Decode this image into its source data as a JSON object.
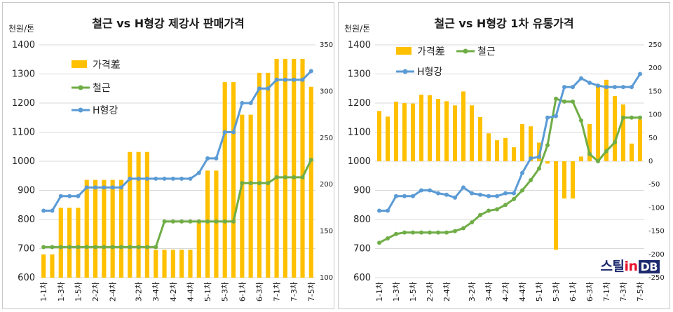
{
  "unit_label": "천원/톤",
  "watermark": {
    "text_a": "스틸",
    "text_b": "in",
    "text_c": "DB"
  },
  "colors": {
    "steel": "#70ad47",
    "h": "#5b9bd5",
    "bar": "#ffc000",
    "grid": "#d9d9d9"
  },
  "chart_data": [
    {
      "type": "bar",
      "title": "철근 vs H형강 제강사 판매가격",
      "ylim": [
        600,
        1400
      ],
      "y2lim": [
        100,
        350
      ],
      "yticks": [
        600,
        700,
        800,
        900,
        1000,
        1100,
        1200,
        1300,
        1400
      ],
      "y2ticks": [
        100,
        150,
        200,
        250,
        300,
        350
      ],
      "legend_placement": "top-left",
      "grid": true,
      "x": [
        "1-1차",
        "1-2차",
        "1-3차",
        "1-4차",
        "1-5차",
        "2-1차",
        "2-2차",
        "2-3차",
        "2-4차",
        "2-5차",
        "3-1차",
        "3-2차",
        "3-3차",
        "3-4차",
        "4-1차",
        "4-2차",
        "4-3차",
        "4-4차",
        "4-5차",
        "5-1차",
        "5-2차",
        "5-3차",
        "5-4차",
        "6-1차",
        "6-2차",
        "6-3차",
        "6-4차",
        "7-1차",
        "7-2차",
        "7-3차",
        "7-4차",
        "7-5차"
      ],
      "xtick_labels": [
        "1-1차",
        "1-3차",
        "1-5차",
        "2-2차",
        "2-4차",
        "3-2차",
        "3-4차",
        "4-2차",
        "4-4차",
        "5-1차",
        "5-3차",
        "6-1차",
        "6-3차",
        "7-1차",
        "7-3차",
        "7-5차"
      ],
      "series": [
        {
          "name": "가격差",
          "type": "bar",
          "axis": "right",
          "values": [
            125,
            125,
            175,
            175,
            175,
            205,
            205,
            205,
            205,
            205,
            235,
            235,
            235,
            130,
            130,
            130,
            130,
            130,
            160,
            215,
            215,
            310,
            310,
            275,
            275,
            320,
            320,
            335,
            335,
            335,
            335,
            305
          ]
        },
        {
          "name": "철근",
          "type": "line",
          "axis": "left",
          "values": [
            705,
            705,
            705,
            705,
            705,
            705,
            705,
            705,
            705,
            705,
            705,
            705,
            705,
            705,
            793,
            793,
            793,
            793,
            793,
            793,
            793,
            793,
            793,
            925,
            925,
            925,
            925,
            945,
            945,
            945,
            945,
            1005
          ]
        },
        {
          "name": "H형강",
          "type": "line",
          "axis": "left",
          "values": [
            830,
            830,
            880,
            880,
            880,
            910,
            910,
            910,
            910,
            910,
            940,
            940,
            940,
            940,
            940,
            940,
            940,
            940,
            960,
            1010,
            1010,
            1100,
            1100,
            1200,
            1200,
            1250,
            1250,
            1280,
            1280,
            1280,
            1280,
            1310
          ]
        }
      ]
    },
    {
      "type": "bar",
      "title": "철근 vs H형강 1차 유통가격",
      "ylim": [
        600,
        1400
      ],
      "y2lim": [
        -250,
        250
      ],
      "yticks": [
        600,
        700,
        800,
        900,
        1000,
        1100,
        1200,
        1300,
        1400
      ],
      "y2ticks": [
        -250,
        -200,
        -150,
        -100,
        -50,
        0,
        50,
        100,
        150,
        200,
        250
      ],
      "legend_placement": "top-left",
      "grid": true,
      "x": [
        "1-1차",
        "1-2차",
        "1-3차",
        "1-4차",
        "1-5차",
        "2-1차",
        "2-2차",
        "2-3차",
        "2-4차",
        "2-5차",
        "3-1차",
        "3-2차",
        "3-3차",
        "3-4차",
        "4-1차",
        "4-2차",
        "4-3차",
        "4-4차",
        "4-5차",
        "5-1차",
        "5-2차",
        "5-3차",
        "5-4차",
        "6-1차",
        "6-2차",
        "6-3차",
        "6-4차",
        "7-1차",
        "7-2차",
        "7-3차",
        "7-4차",
        "7-5차"
      ],
      "xtick_labels": [
        "1-1차",
        "1-3차",
        "1-5차",
        "2-2차",
        "2-4차",
        "3-2차",
        "3-4차",
        "4-2차",
        "4-4차",
        "5-1차",
        "5-3차",
        "6-1차",
        "6-3차",
        "7-1차",
        "7-3차",
        "7-5차"
      ],
      "series": [
        {
          "name": "가격差",
          "type": "bar",
          "axis": "right",
          "values": [
            108,
            96,
            128,
            125,
            124,
            143,
            142,
            134,
            129,
            120,
            150,
            120,
            95,
            60,
            45,
            50,
            30,
            80,
            75,
            40,
            -5,
            -190,
            -80,
            -80,
            10,
            80,
            165,
            175,
            140,
            122,
            38,
            90
          ]
        },
        {
          "name": "철근",
          "type": "line",
          "axis": "left",
          "values": [
            720,
            735,
            750,
            755,
            755,
            755,
            755,
            755,
            755,
            760,
            770,
            790,
            815,
            830,
            835,
            850,
            870,
            900,
            935,
            975,
            1055,
            1215,
            1205,
            1205,
            1140,
            1025,
            1000,
            1035,
            1065,
            1150,
            1150,
            1150
          ]
        },
        {
          "name": "H형강",
          "type": "line",
          "axis": "left",
          "values": [
            830,
            830,
            880,
            880,
            880,
            900,
            900,
            890,
            885,
            875,
            910,
            890,
            885,
            880,
            880,
            890,
            890,
            960,
            1010,
            1015,
            1150,
            1155,
            1255,
            1255,
            1285,
            1270,
            1260,
            1255,
            1255,
            1255,
            1255,
            1300
          ]
        }
      ]
    }
  ]
}
